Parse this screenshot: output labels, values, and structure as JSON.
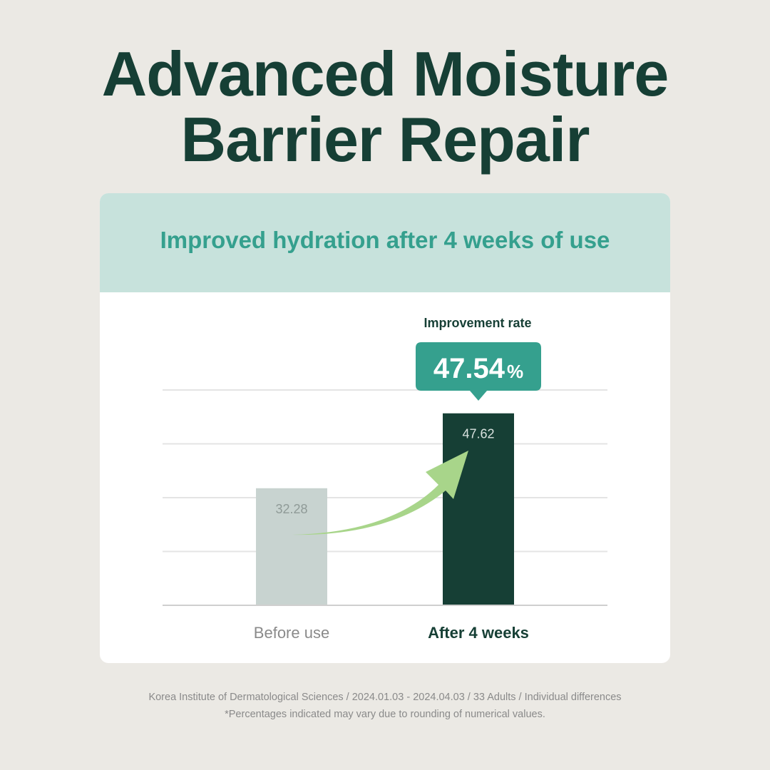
{
  "title_line1": "Advanced Moisture",
  "title_line2": "Barrier Repair",
  "subtitle": "Improved hydration after 4 weeks of use",
  "colors": {
    "background": "#ebe9e4",
    "title": "#163f35",
    "band": "#c7e2dc",
    "accent": "#35a08e",
    "before_bar": "#c8d3d0",
    "after_bar": "#163f35",
    "arrow": "#a8d58a"
  },
  "chart_data": {
    "type": "bar",
    "categories": [
      "Before use",
      "After 4 weeks"
    ],
    "values": [
      32.28,
      47.62
    ],
    "ylim": [
      8.3,
      52.4
    ],
    "grid": true,
    "annotation": {
      "label": "Improvement rate",
      "value": "47.54",
      "unit": "%"
    }
  },
  "footnote_line1": "Korea Institute of Dermatological Sciences / 2024.01.03 - 2024.04.03 / 33 Adults / Individual differences",
  "footnote_line2": "*Percentages indicated may vary due to rounding of numerical values."
}
